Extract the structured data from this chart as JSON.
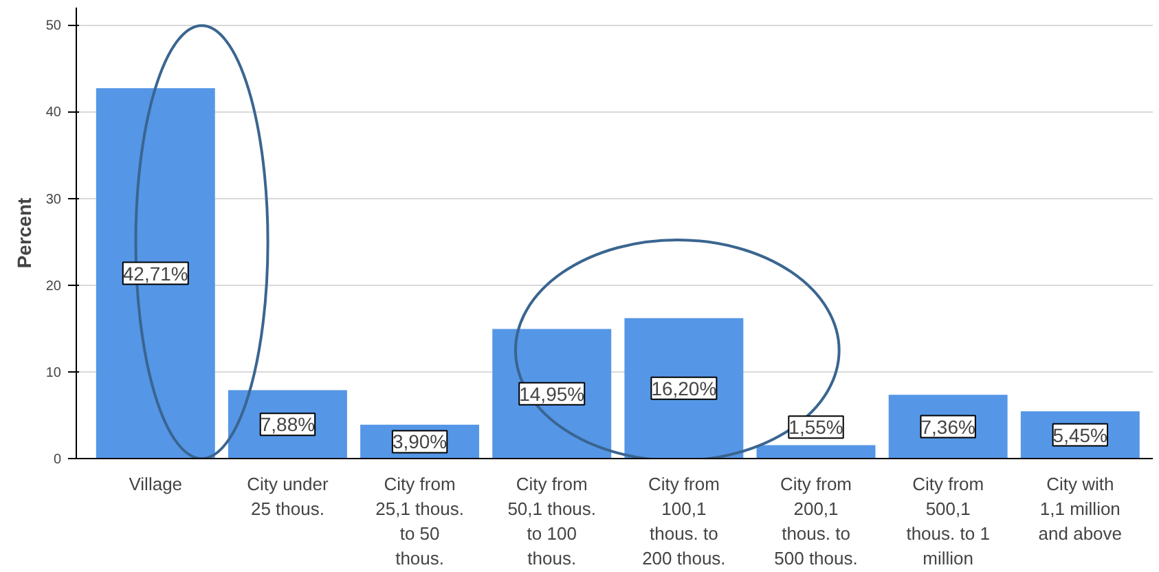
{
  "chart_data": {
    "type": "bar",
    "ylabel": "Percent",
    "categories": [
      "Village",
      "City under\n25 thous.",
      "City from\n25,1 thous.\nto 50\nthous.",
      "City from\n50,1 thous.\nto 100\nthous.",
      "City from\n100,1\nthous. to\n200 thous.",
      "City from\n200,1\nthous. to\n500 thous.",
      "City from\n500,1\nthous. to 1\nmillion",
      "City with\n1,1 million\nand above"
    ],
    "values": [
      42.71,
      7.88,
      3.9,
      14.95,
      16.2,
      1.55,
      7.36,
      5.45
    ],
    "value_labels": [
      "42,71%",
      "7,88%",
      "3,90%",
      "14,95%",
      "16,20%",
      "1,55%",
      "7,36%",
      "5,45%"
    ],
    "color": "#5596e6",
    "ylim": [
      0,
      52
    ],
    "yticks": [
      0,
      10,
      20,
      30,
      40,
      50
    ],
    "grid": "y"
  }
}
